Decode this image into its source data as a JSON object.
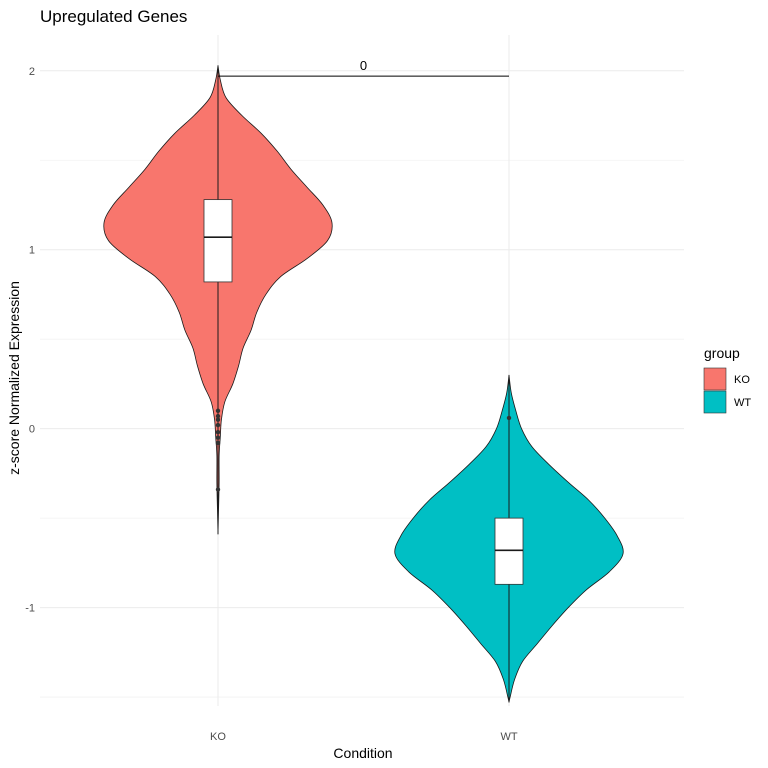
{
  "chart_data": {
    "type": "violin",
    "title": "Upregulated Genes",
    "xlabel": "Condition",
    "ylabel": "z-score Normalized Expression",
    "categories": [
      "KO",
      "WT"
    ],
    "ylim": [
      -1.55,
      2.2
    ],
    "yticks": [
      -1,
      0,
      1,
      2
    ],
    "grid": true,
    "legend": {
      "title": "group",
      "position": "right",
      "entries": [
        {
          "label": "KO",
          "color": "#F8766D"
        },
        {
          "label": "WT",
          "color": "#00BFC4"
        }
      ]
    },
    "series": [
      {
        "name": "KO",
        "color": "#F8766D",
        "box": {
          "q1": 0.82,
          "median": 1.07,
          "q3": 1.28,
          "whisker_low": -0.33,
          "whisker_high": 1.78
        },
        "range": [
          -0.59,
          2.03
        ],
        "outliers": [
          0.1,
          0.07,
          0.05,
          0.02,
          -0.02,
          -0.05,
          -0.08,
          -0.34
        ],
        "density": [
          [
            2.03,
            0.0
          ],
          [
            1.95,
            0.02
          ],
          [
            1.85,
            0.07
          ],
          [
            1.75,
            0.21
          ],
          [
            1.65,
            0.38
          ],
          [
            1.55,
            0.52
          ],
          [
            1.45,
            0.64
          ],
          [
            1.35,
            0.78
          ],
          [
            1.25,
            0.92
          ],
          [
            1.15,
            1.0
          ],
          [
            1.05,
            0.96
          ],
          [
            0.95,
            0.78
          ],
          [
            0.85,
            0.55
          ],
          [
            0.75,
            0.42
          ],
          [
            0.65,
            0.34
          ],
          [
            0.55,
            0.29
          ],
          [
            0.45,
            0.22
          ],
          [
            0.35,
            0.18
          ],
          [
            0.25,
            0.13
          ],
          [
            0.15,
            0.06
          ],
          [
            0.05,
            0.03
          ],
          [
            -0.05,
            0.02
          ],
          [
            -0.15,
            0.01
          ],
          [
            -0.3,
            0.01
          ],
          [
            -0.45,
            0.005
          ],
          [
            -0.59,
            0.0
          ]
        ]
      },
      {
        "name": "WT",
        "color": "#00BFC4",
        "box": {
          "q1": -0.87,
          "median": -0.68,
          "q3": -0.5,
          "whisker_low": -1.38,
          "whisker_high": 0.18
        },
        "range": [
          -1.53,
          0.3
        ],
        "outliers": [
          0.06
        ],
        "density": [
          [
            0.3,
            0.0
          ],
          [
            0.2,
            0.02
          ],
          [
            0.1,
            0.06
          ],
          [
            0.0,
            0.11
          ],
          [
            -0.1,
            0.2
          ],
          [
            -0.2,
            0.35
          ],
          [
            -0.3,
            0.52
          ],
          [
            -0.4,
            0.7
          ],
          [
            -0.5,
            0.84
          ],
          [
            -0.6,
            0.95
          ],
          [
            -0.7,
            1.0
          ],
          [
            -0.8,
            0.88
          ],
          [
            -0.9,
            0.68
          ],
          [
            -1.0,
            0.52
          ],
          [
            -1.1,
            0.38
          ],
          [
            -1.2,
            0.25
          ],
          [
            -1.3,
            0.12
          ],
          [
            -1.4,
            0.05
          ],
          [
            -1.5,
            0.01
          ],
          [
            -1.53,
            0.0
          ]
        ]
      }
    ],
    "annotation": {
      "label": "0",
      "y": 1.97,
      "from": "KO",
      "to": "WT"
    }
  }
}
